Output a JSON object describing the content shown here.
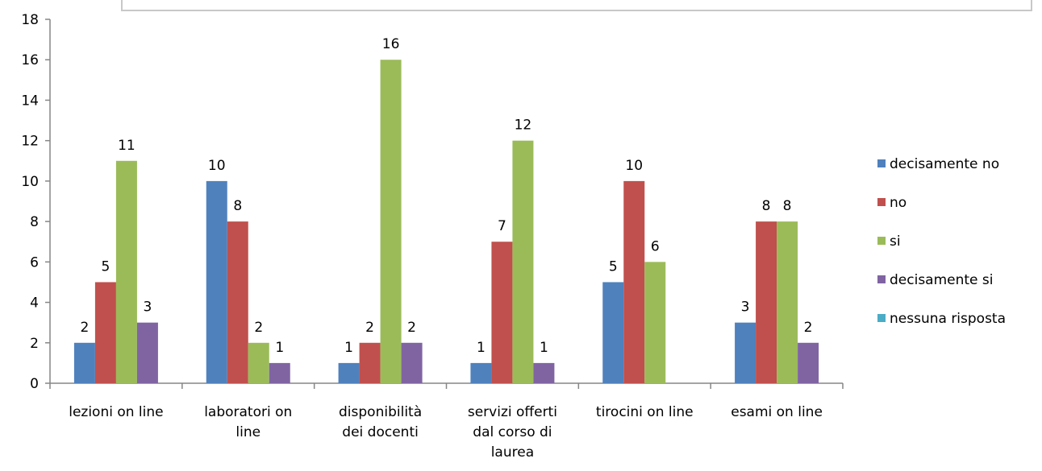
{
  "chart_data": {
    "type": "bar",
    "categories": [
      [
        "lezioni on line"
      ],
      [
        "laboratori on",
        "line"
      ],
      [
        "disponibilità",
        "dei docenti"
      ],
      [
        "servizi offerti",
        "dal corso di",
        "laurea"
      ],
      [
        "tirocini on line"
      ],
      [
        "esami on line"
      ]
    ],
    "series": [
      {
        "name": "decisamente no",
        "color": "#4f81bd",
        "values": [
          2,
          10,
          1,
          1,
          5,
          3
        ]
      },
      {
        "name": "no",
        "color": "#c0504d",
        "values": [
          5,
          8,
          2,
          7,
          10,
          8
        ]
      },
      {
        "name": "si",
        "color": "#9bbb59",
        "values": [
          11,
          2,
          16,
          12,
          6,
          8
        ]
      },
      {
        "name": "decisamente si",
        "color": "#8064a2",
        "values": [
          3,
          1,
          2,
          1,
          0,
          2
        ]
      },
      {
        "name": "nessuna risposta",
        "color": "#4bacc6",
        "values": [
          0,
          0,
          0,
          0,
          0,
          0
        ]
      }
    ],
    "ylim": [
      0,
      18
    ],
    "yticks": [
      0,
      2,
      4,
      6,
      8,
      10,
      12,
      14,
      16,
      18
    ],
    "grid": false,
    "legend": "right"
  }
}
